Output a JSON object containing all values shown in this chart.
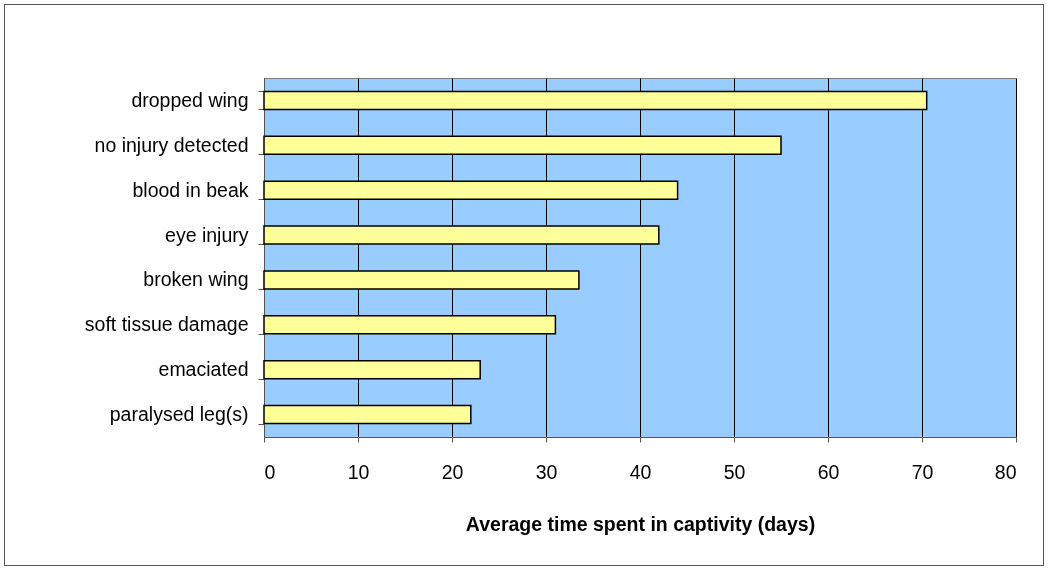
{
  "chart_data": {
    "type": "bar",
    "orientation": "horizontal",
    "categories": [
      "dropped wing",
      "no injury detected",
      "blood in beak",
      "eye injury",
      "broken wing",
      "soft tissue damage",
      "emaciated",
      "paralysed leg(s)"
    ],
    "values": [
      70.5,
      55,
      44,
      42,
      33.5,
      31,
      23,
      22
    ],
    "color": "#ffff99",
    "xlabel": "Average time spent in captivity (days)",
    "xlim": [
      0,
      80
    ],
    "xticks": [
      0,
      10,
      20,
      30,
      40,
      50,
      60,
      70,
      80
    ],
    "grid": "x"
  }
}
